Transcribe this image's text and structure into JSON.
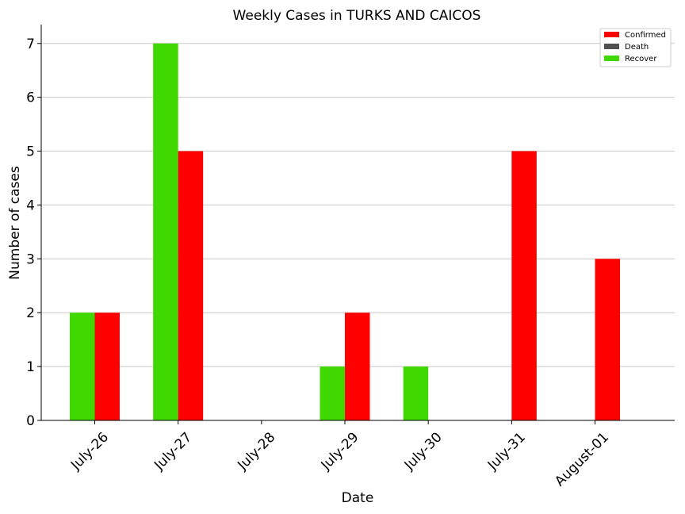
{
  "chart_data": {
    "type": "bar",
    "title": "Weekly Cases in TURKS AND CAICOS",
    "xlabel": "Date",
    "ylabel": "Number of cases",
    "categories": [
      "July-26",
      "July-27",
      "July-28",
      "July-29",
      "July-30",
      "July-31",
      "August-01"
    ],
    "series": [
      {
        "name": "Recover",
        "color": "#3fd800",
        "values": [
          2,
          7,
          0,
          1,
          1,
          0,
          0
        ]
      },
      {
        "name": "Confirmed",
        "color": "#ff0000",
        "values": [
          2,
          5,
          0,
          2,
          0,
          5,
          3
        ]
      }
    ],
    "legend": [
      {
        "name": "Confirmed",
        "color": "#ff0000"
      },
      {
        "name": "Death",
        "color": "#505050"
      },
      {
        "name": "Recover",
        "color": "#3fd800"
      }
    ],
    "legend_position": "top-right",
    "ylim": [
      0,
      7.35
    ],
    "yticks": [
      "0",
      "1",
      "2",
      "3",
      "4",
      "5",
      "6",
      "7"
    ],
    "grid": "horizontal",
    "gridline_color": "#c8c8c8"
  }
}
